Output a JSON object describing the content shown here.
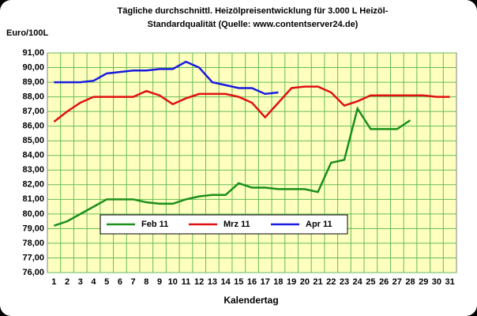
{
  "chart_data": {
    "type": "line",
    "title": [
      "Tägliche durchschnittl. Heizölpreisentwicklung für 3.000 L Heizöl-",
      "Standardqualität (Quelle: www.contentserver24.de)"
    ],
    "y_label": "Euro/100L",
    "x_label": "Kalendertag",
    "categories": [
      "1",
      "2",
      "3",
      "4",
      "5",
      "6",
      "7",
      "8",
      "9",
      "10",
      "11",
      "12",
      "13",
      "14",
      "15",
      "16",
      "17",
      "18",
      "19",
      "20",
      "21",
      "22",
      "23",
      "24",
      "25",
      "26",
      "27",
      "28",
      "29",
      "30",
      "31"
    ],
    "series": [
      {
        "name": "Feb 11",
        "color": "#1a8f1a",
        "values": [
          79.2,
          79.5,
          80.0,
          80.5,
          81.0,
          81.0,
          81.0,
          80.8,
          80.7,
          80.7,
          81.0,
          81.2,
          81.3,
          81.3,
          82.1,
          81.8,
          81.8,
          81.7,
          81.7,
          81.7,
          81.5,
          83.5,
          83.7,
          87.2,
          85.8,
          85.8,
          85.8,
          86.4,
          null,
          null,
          null
        ]
      },
      {
        "name": "Mrz 11",
        "color": "#e01010",
        "values": [
          86.3,
          87.0,
          87.6,
          88.0,
          88.0,
          88.0,
          88.0,
          88.4,
          88.1,
          87.5,
          87.9,
          88.2,
          88.2,
          88.2,
          88.0,
          87.6,
          86.6,
          87.6,
          88.6,
          88.7,
          88.7,
          88.3,
          87.4,
          87.7,
          88.1,
          88.1,
          88.1,
          88.1,
          88.1,
          88.0,
          88.0
        ]
      },
      {
        "name": "Apr 11",
        "color": "#1a1ae0",
        "values": [
          89.0,
          89.0,
          89.0,
          89.1,
          89.6,
          89.7,
          89.8,
          89.8,
          89.9,
          89.9,
          90.4,
          90.0,
          89.0,
          88.8,
          88.6,
          88.6,
          88.2,
          88.3,
          null,
          null,
          null,
          null,
          null,
          null,
          null,
          null,
          null,
          null,
          null,
          null,
          null
        ]
      }
    ],
    "ylim": [
      76,
      91
    ],
    "yticks": [
      {
        "value": 76,
        "label": "76,00"
      },
      {
        "value": 77,
        "label": "77,00"
      },
      {
        "value": 78,
        "label": "78,00"
      },
      {
        "value": 79,
        "label": "79,00"
      },
      {
        "value": 80,
        "label": "80,00"
      },
      {
        "value": 81,
        "label": "81,00"
      },
      {
        "value": 82,
        "label": "82,00"
      },
      {
        "value": 83,
        "label": "83,00"
      },
      {
        "value": 84,
        "label": "84,00"
      },
      {
        "value": 85,
        "label": "85,00"
      },
      {
        "value": 86,
        "label": "86,00"
      },
      {
        "value": 87,
        "label": "87,00"
      },
      {
        "value": 88,
        "label": "88,00"
      },
      {
        "value": 89,
        "label": "89,00"
      },
      {
        "value": 90,
        "label": "90,00"
      },
      {
        "value": 91,
        "label": "91,00"
      }
    ],
    "grid": true,
    "legend": "bottom"
  }
}
